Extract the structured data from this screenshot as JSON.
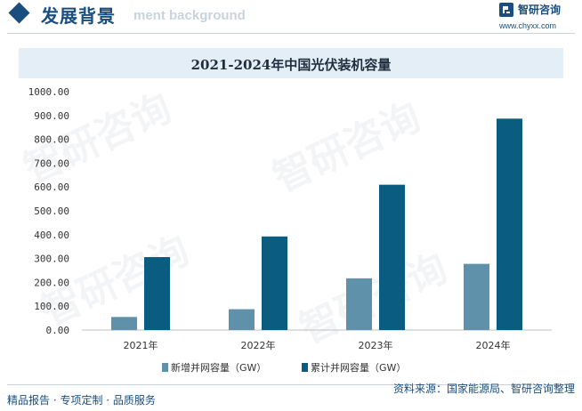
{
  "header": {
    "title": "发展背景",
    "title_en": "ment background",
    "logo_text": "智研咨询",
    "logo_url": "www.chyxx.com"
  },
  "footer": {
    "left": "精品报告 · 专项定制 · 品质服务",
    "right": "资料来源：国家能源局、智研咨询整理"
  },
  "watermark": "智研咨询",
  "colors": {
    "new_capacity": "#5f91ab",
    "cumulative_capacity": "#0a5c80",
    "accent": "#1a4e7e"
  },
  "chart_data": {
    "type": "bar",
    "title": "2021-2024年中国光伏装机容量",
    "categories": [
      "2021年",
      "2022年",
      "2023年",
      "2024年"
    ],
    "series": [
      {
        "name": "新增并网容量（GW）",
        "values": [
          54.9,
          87.4,
          216.9,
          277.6
        ]
      },
      {
        "name": "累计并网容量（GW）",
        "values": [
          306,
          392.6,
          609.5,
          886.7
        ]
      }
    ],
    "ylim": [
      0,
      1000
    ],
    "yticks": [
      "0.00",
      "100.00",
      "200.00",
      "300.00",
      "400.00",
      "500.00",
      "600.00",
      "700.00",
      "800.00",
      "900.00",
      "1000.00"
    ],
    "xlabel": "",
    "ylabel": "",
    "grid": false,
    "legend_position": "bottom"
  }
}
